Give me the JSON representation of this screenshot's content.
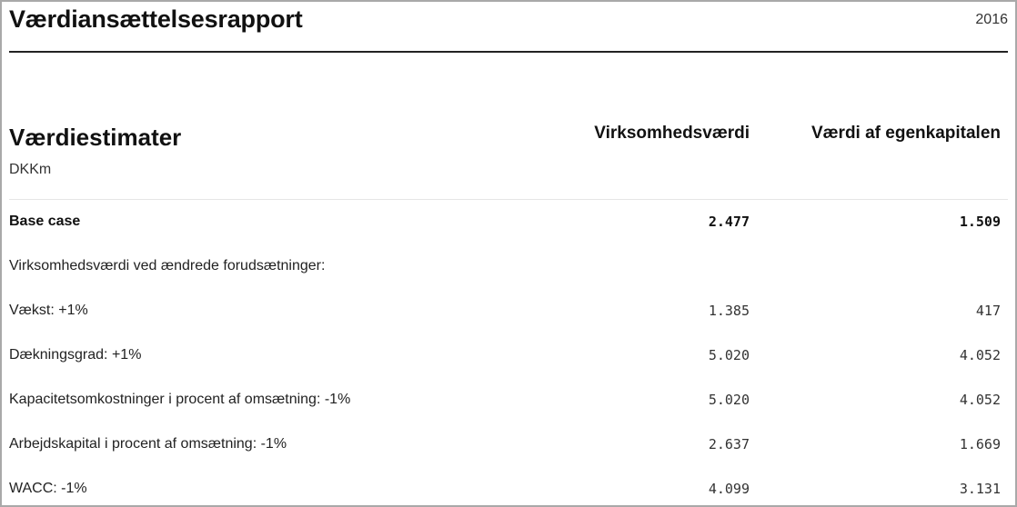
{
  "header": {
    "title": "Værdiansættelsesrapport",
    "year": "2016"
  },
  "section": {
    "title": "Værdiestimater",
    "unit": "DKKm",
    "columns": [
      "Virksomhedsværdi",
      "Værdi af egenkapitalen"
    ]
  },
  "rows": [
    {
      "label": "Base case",
      "enterprise_value": "2.477",
      "equity_value": "1.509",
      "bold": true
    },
    {
      "label": "Virksomhedsværdi ved ændrede forudsætninger:",
      "enterprise_value": "",
      "equity_value": ""
    },
    {
      "label": "Vækst: +1%",
      "enterprise_value": "1.385",
      "equity_value": "417"
    },
    {
      "label": "Dækningsgrad: +1%",
      "enterprise_value": "5.020",
      "equity_value": "4.052"
    },
    {
      "label": "Kapacitetsomkostninger i procent af omsætning: -1%",
      "enterprise_value": "5.020",
      "equity_value": "4.052"
    },
    {
      "label": "Arbejdskapital i procent af omsætning: -1%",
      "enterprise_value": "2.637",
      "equity_value": "1.669"
    },
    {
      "label": "WACC: -1%",
      "enterprise_value": "4.099",
      "equity_value": "3.131"
    }
  ]
}
